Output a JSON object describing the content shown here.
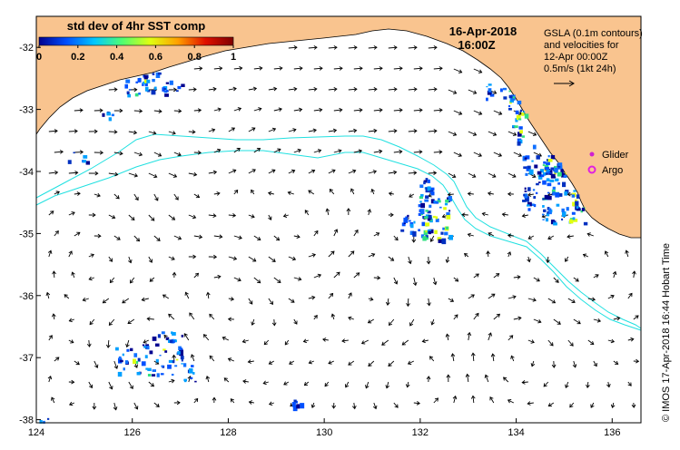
{
  "colorbar": {
    "title": "std dev of 4hr SST comp",
    "ticks": [
      "0",
      "0.2",
      "0.4",
      "0.6",
      "0.8",
      "1"
    ],
    "colors": [
      "#00008f",
      "#0050ff",
      "#00c8ff",
      "#50ff70",
      "#e0ff10",
      "#ffa000",
      "#e01000",
      "#7f0000"
    ]
  },
  "header": {
    "date": "16-Apr-2018",
    "time": "16:00Z"
  },
  "gsla_info": {
    "line1": "GSLA (0.1m contours)",
    "line2": "and velocities for",
    "line3": "12-Apr 00:00Z",
    "line4": "0.5m/s (1kt 24h)"
  },
  "legend": {
    "glider_label": "Glider",
    "argo_label": "Argo",
    "glider_color": "#d020d0",
    "argo_color": "#e020e0"
  },
  "credit": "©  IMOS 17-Apr-2018 16:44 Hobart Time",
  "axes": {
    "x_ticks": [
      "124",
      "126",
      "128",
      "130",
      "132",
      "134",
      "136"
    ],
    "y_ticks": [
      "-32",
      "-33",
      "-34",
      "-35",
      "-36",
      "-37",
      "-38"
    ],
    "x_range": [
      124,
      136.6
    ],
    "y_range": [
      -38.05,
      -31.5
    ]
  },
  "colors": {
    "land": "#f9c48f",
    "contour": "#20e0e0",
    "arrow": "#000000"
  }
}
